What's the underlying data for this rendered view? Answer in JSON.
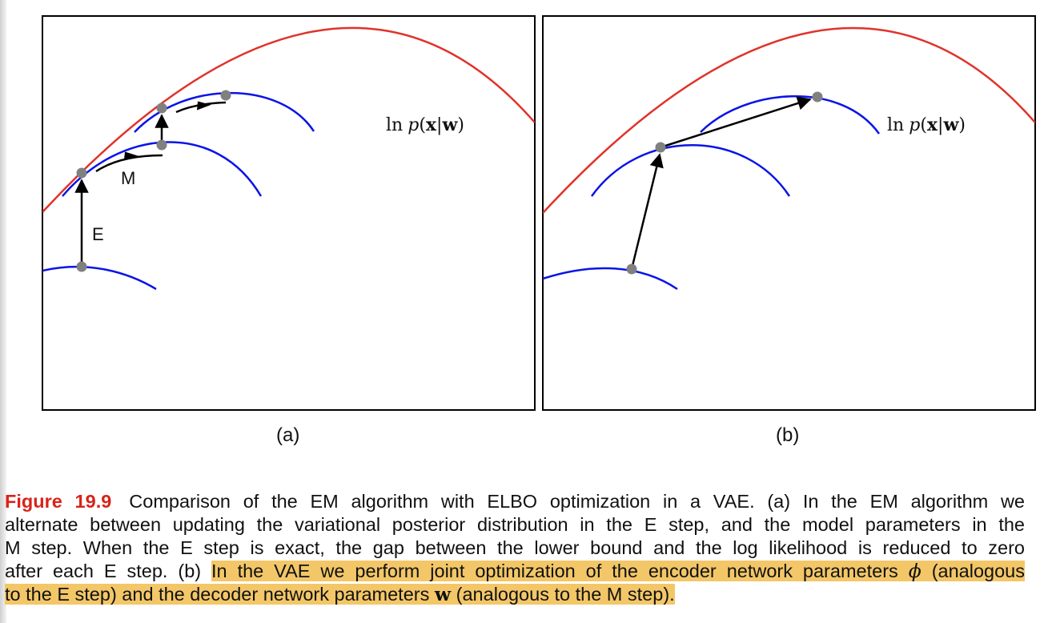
{
  "figure": {
    "panels": [
      {
        "label": "(a)",
        "curve_label": {
          "ln": "ln",
          "p": "p",
          "open": "(",
          "x": "x",
          "bar": "|",
          "w": "w",
          "close": ")"
        },
        "arrow_labels": {
          "e": "E",
          "m": "M"
        }
      },
      {
        "label": "(b)",
        "curve_label": {
          "ln": "ln",
          "p": "p",
          "open": "(",
          "x": "x",
          "bar": "|",
          "w": "w",
          "close": ")"
        }
      }
    ],
    "colors": {
      "likelihood": "#e0332a",
      "bound": "#0a14e6",
      "point": "#808080",
      "arrow": "#000000",
      "highlight": "#f3c768",
      "figure_number": "#d8231b"
    }
  },
  "caption": {
    "figure_number": "Figure 19.9",
    "line1": "Comparison of the EM algorithm with ELBO optimization in a VAE. (a) In the EM algorithm we",
    "line2": "alternate between updating the variational posterior distribution in the E step, and the model parameters in the",
    "line3": "M step.  When the E step is exact, the gap between the lower bound and the log likelihood is reduced to zero",
    "line4_plain": "after each E step. (b) ",
    "line4_highlight_a": "In the VAE we perform joint optimization of the encoder network parameters ",
    "phi": "ϕ",
    "line4_highlight_b": " (analogous",
    "line5_highlight_a": "to the E step) and the decoder network parameters ",
    "w": "w",
    "line5_highlight_b": " (analogous to the M step)."
  }
}
